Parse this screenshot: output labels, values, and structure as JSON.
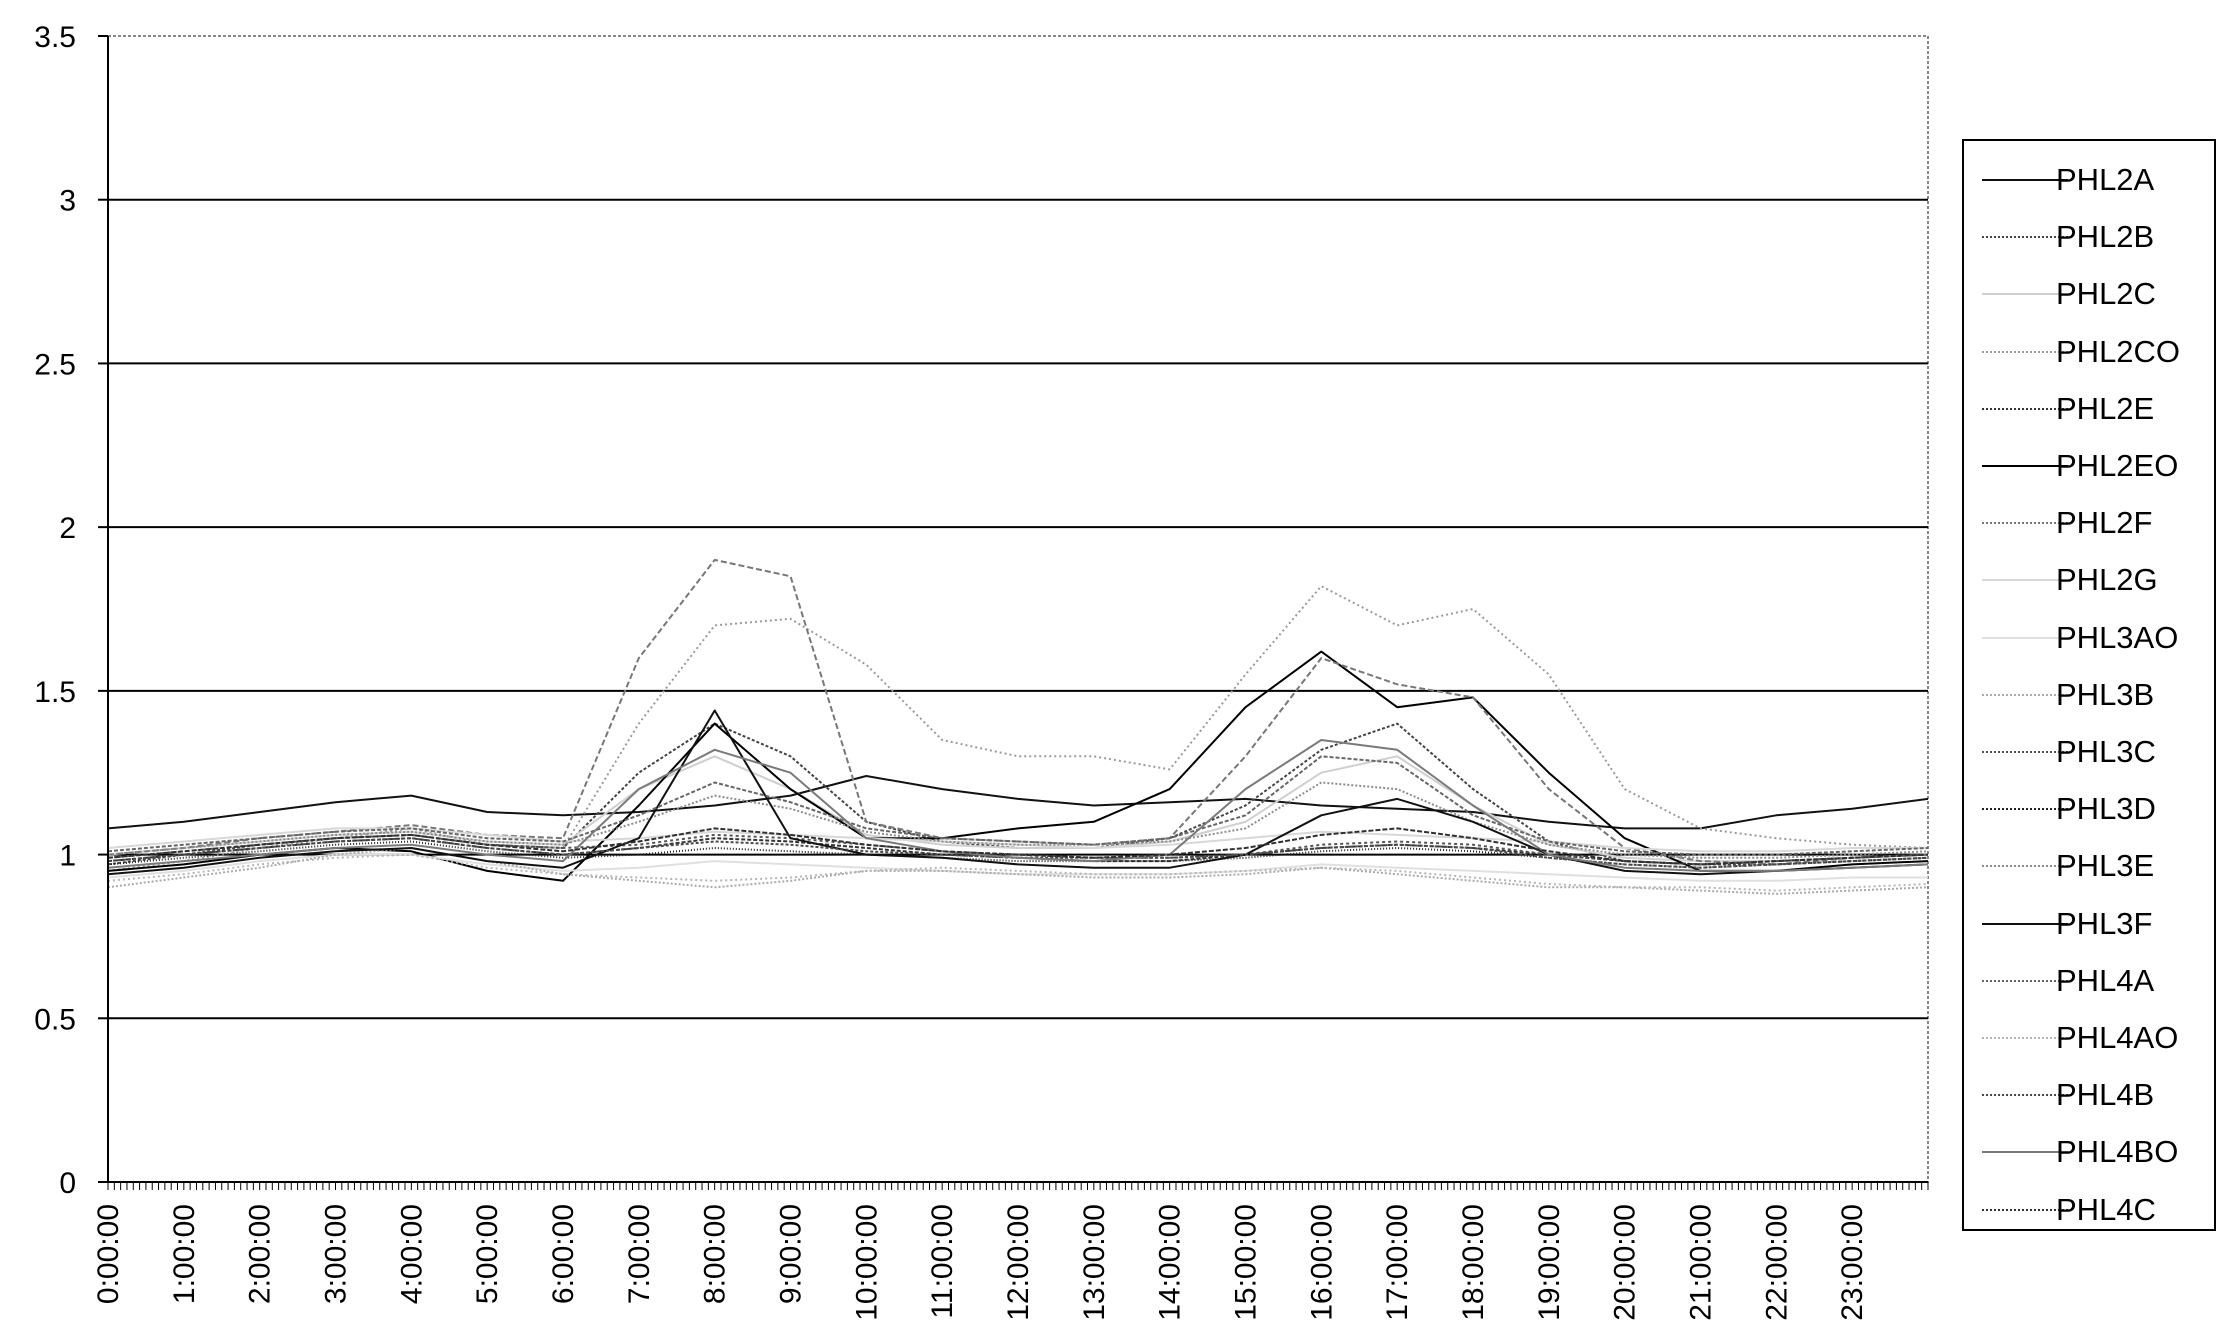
{
  "chart_data": {
    "type": "line",
    "title": "",
    "xlabel": "",
    "ylabel": "",
    "ylim": [
      0,
      3.5
    ],
    "yticks": [
      "0",
      "0.5",
      "1",
      "1.5",
      "2",
      "2.5",
      "3",
      "3.5"
    ],
    "xlim": [
      0,
      24
    ],
    "xticks": [
      "0:00:00",
      "1:00:00",
      "2:00:00",
      "3:00:00",
      "4:00:00",
      "5:00:00",
      "6:00:00",
      "7:00:00",
      "8:00:00",
      "9:00:00",
      "10:00:00",
      "11:00:00",
      "12:00:00",
      "13:00:00",
      "14:00:00",
      "15:00:00",
      "16:00:00",
      "17:00:00",
      "18:00:00",
      "19:00:00",
      "20:00:00",
      "21:00:00",
      "22:00:00",
      "23:00:00"
    ],
    "grid": true,
    "legend_position": "right",
    "series": [
      {
        "name": "PHL2A",
        "color": "#111111",
        "dash": "",
        "x": [
          0,
          1,
          2,
          3,
          4,
          5,
          6,
          7,
          8,
          9,
          10,
          11,
          12,
          13,
          14,
          15,
          16,
          17,
          18,
          19,
          20,
          21,
          22,
          23,
          24
        ],
        "y": [
          1.08,
          1.1,
          1.13,
          1.16,
          1.18,
          1.13,
          1.12,
          1.13,
          1.15,
          1.18,
          1.24,
          1.2,
          1.17,
          1.15,
          1.16,
          1.17,
          1.15,
          1.14,
          1.13,
          1.1,
          1.08,
          1.08,
          1.12,
          1.14,
          1.17
        ]
      },
      {
        "name": "PHL2B",
        "color": "#444444",
        "dash": "3,2",
        "x": [
          0,
          1,
          2,
          3,
          4,
          5,
          6,
          7,
          8,
          9,
          10,
          11,
          12,
          13,
          14,
          15,
          16,
          17,
          18,
          19,
          20,
          21,
          22,
          23,
          24
        ],
        "y": [
          0.97,
          1.0,
          1.03,
          1.05,
          1.06,
          1.03,
          1.02,
          1.25,
          1.4,
          1.3,
          1.1,
          1.04,
          1.02,
          1.02,
          1.05,
          1.15,
          1.32,
          1.4,
          1.2,
          1.04,
          0.98,
          0.97,
          0.97,
          0.98,
          0.99
        ]
      },
      {
        "name": "PHL2C",
        "color": "#cfcfcf",
        "dash": "",
        "x": [
          0,
          1,
          2,
          3,
          4,
          5,
          6,
          7,
          8,
          9,
          10,
          11,
          12,
          13,
          14,
          15,
          16,
          17,
          18,
          19,
          20,
          21,
          22,
          23,
          24
        ],
        "y": [
          1.0,
          1.02,
          1.04,
          1.06,
          1.07,
          1.04,
          1.03,
          1.2,
          1.3,
          1.2,
          1.06,
          1.03,
          1.02,
          1.02,
          1.04,
          1.1,
          1.25,
          1.3,
          1.15,
          1.03,
          0.99,
          0.98,
          0.98,
          0.99,
          1.0
        ]
      },
      {
        "name": "PHL2CO",
        "color": "#9a9a9a",
        "dash": "2,3",
        "x": [
          0,
          1,
          2,
          3,
          4,
          5,
          6,
          7,
          8,
          9,
          10,
          11,
          12,
          13,
          14,
          15,
          16,
          17,
          18,
          19,
          20,
          21,
          22,
          23,
          24
        ],
        "y": [
          0.95,
          0.98,
          1.02,
          1.05,
          1.08,
          1.03,
          1.02,
          1.4,
          1.7,
          1.72,
          1.58,
          1.35,
          1.3,
          1.3,
          1.26,
          1.55,
          1.82,
          1.7,
          1.75,
          1.55,
          1.2,
          1.08,
          1.05,
          1.03,
          1.02
        ]
      },
      {
        "name": "PHL2E",
        "color": "#333333",
        "dash": "4,2",
        "x": [
          0,
          1,
          2,
          3,
          4,
          5,
          6,
          7,
          8,
          9,
          10,
          11,
          12,
          13,
          14,
          15,
          16,
          17,
          18,
          19,
          20,
          21,
          22,
          23,
          24
        ],
        "y": [
          0.98,
          1.0,
          1.02,
          1.04,
          1.05,
          1.02,
          1.0,
          1.02,
          1.05,
          1.04,
          1.02,
          1.0,
          0.99,
          0.98,
          0.98,
          1.0,
          1.02,
          1.03,
          1.02,
          1.0,
          0.98,
          0.97,
          0.98,
          0.99,
          1.0
        ]
      },
      {
        "name": "PHL2EO",
        "color": "#000000",
        "dash": "",
        "x": [
          0,
          1,
          2,
          3,
          4,
          5,
          6,
          7,
          8,
          9,
          10,
          11,
          12,
          13,
          14,
          15,
          16,
          17,
          18,
          19,
          20,
          21,
          22,
          23,
          24
        ],
        "y": [
          0.95,
          0.97,
          1.0,
          1.02,
          1.01,
          0.95,
          0.92,
          1.15,
          1.4,
          1.2,
          1.05,
          1.05,
          1.08,
          1.1,
          1.2,
          1.45,
          1.62,
          1.45,
          1.48,
          1.25,
          1.05,
          0.95,
          0.95,
          0.97,
          0.98
        ]
      },
      {
        "name": "PHL2F",
        "color": "#777777",
        "dash": "6,3",
        "x": [
          0,
          1,
          2,
          3,
          4,
          5,
          6,
          7,
          8,
          9,
          10,
          11,
          12,
          13,
          14,
          15,
          16,
          17,
          18,
          19,
          20,
          21,
          22,
          23,
          24
        ],
        "y": [
          1.0,
          1.02,
          1.05,
          1.07,
          1.09,
          1.06,
          1.05,
          1.6,
          1.9,
          1.85,
          1.1,
          1.05,
          1.04,
          1.03,
          1.05,
          1.3,
          1.6,
          1.52,
          1.48,
          1.2,
          1.02,
          0.98,
          0.97,
          0.99,
          1.0
        ]
      },
      {
        "name": "PHL2G",
        "color": "#d8d8d8",
        "dash": "",
        "x": [
          0,
          1,
          2,
          3,
          4,
          5,
          6,
          7,
          8,
          9,
          10,
          11,
          12,
          13,
          14,
          15,
          16,
          17,
          18,
          19,
          20,
          21,
          22,
          23,
          24
        ],
        "y": [
          1.02,
          1.04,
          1.06,
          1.08,
          1.08,
          1.06,
          1.04,
          1.05,
          1.07,
          1.06,
          1.05,
          1.04,
          1.03,
          1.02,
          1.03,
          1.05,
          1.07,
          1.06,
          1.05,
          1.04,
          1.02,
          1.01,
          1.01,
          1.02,
          1.02
        ]
      },
      {
        "name": "PHL3AO",
        "color": "#e0e0e0",
        "dash": "",
        "x": [
          0,
          1,
          2,
          3,
          4,
          5,
          6,
          7,
          8,
          9,
          10,
          11,
          12,
          13,
          14,
          15,
          16,
          17,
          18,
          19,
          20,
          21,
          22,
          23,
          24
        ],
        "y": [
          0.93,
          0.95,
          0.98,
          1.0,
          1.0,
          0.97,
          0.95,
          0.96,
          0.98,
          0.97,
          0.96,
          0.95,
          0.94,
          0.94,
          0.94,
          0.95,
          0.97,
          0.96,
          0.95,
          0.94,
          0.93,
          0.92,
          0.92,
          0.93,
          0.93
        ]
      },
      {
        "name": "PHL3B",
        "color": "#aaaaaa",
        "dash": "2,2",
        "x": [
          0,
          1,
          2,
          3,
          4,
          5,
          6,
          7,
          8,
          9,
          10,
          11,
          12,
          13,
          14,
          15,
          16,
          17,
          18,
          19,
          20,
          21,
          22,
          23,
          24
        ],
        "y": [
          0.9,
          0.93,
          0.96,
          1.0,
          1.02,
          0.98,
          0.94,
          0.92,
          0.9,
          0.92,
          0.95,
          0.95,
          0.94,
          0.93,
          0.93,
          0.94,
          0.96,
          0.94,
          0.92,
          0.9,
          0.9,
          0.89,
          0.88,
          0.89,
          0.9
        ]
      },
      {
        "name": "PHL3C",
        "color": "#555555",
        "dash": "3,3",
        "x": [
          0,
          1,
          2,
          3,
          4,
          5,
          6,
          7,
          8,
          9,
          10,
          11,
          12,
          13,
          14,
          15,
          16,
          17,
          18,
          19,
          20,
          21,
          22,
          23,
          24
        ],
        "y": [
          0.99,
          1.01,
          1.03,
          1.05,
          1.06,
          1.03,
          1.02,
          1.03,
          1.06,
          1.05,
          1.03,
          1.01,
          1.0,
          0.99,
          0.99,
          1.0,
          1.03,
          1.04,
          1.03,
          1.0,
          0.98,
          0.97,
          0.98,
          0.99,
          1.0
        ]
      },
      {
        "name": "PHL3D",
        "color": "#222222",
        "dash": "1,2",
        "x": [
          0,
          1,
          2,
          3,
          4,
          5,
          6,
          7,
          8,
          9,
          10,
          11,
          12,
          13,
          14,
          15,
          16,
          17,
          18,
          19,
          20,
          21,
          22,
          23,
          24
        ],
        "y": [
          0.97,
          0.99,
          1.01,
          1.03,
          1.04,
          1.01,
          0.99,
          1.0,
          1.02,
          1.01,
          1.0,
          0.99,
          0.98,
          0.98,
          0.98,
          0.99,
          1.01,
          1.02,
          1.01,
          0.99,
          0.97,
          0.96,
          0.97,
          0.98,
          0.99
        ]
      },
      {
        "name": "PHL3E",
        "color": "#8c8c8c",
        "dash": "2,2",
        "x": [
          0,
          1,
          2,
          3,
          4,
          5,
          6,
          7,
          8,
          9,
          10,
          11,
          12,
          13,
          14,
          15,
          16,
          17,
          18,
          19,
          20,
          21,
          22,
          23,
          24
        ],
        "y": [
          1.0,
          1.02,
          1.04,
          1.06,
          1.07,
          1.04,
          1.03,
          1.1,
          1.18,
          1.14,
          1.07,
          1.04,
          1.03,
          1.03,
          1.04,
          1.08,
          1.22,
          1.2,
          1.1,
          1.03,
          1.0,
          0.99,
          0.99,
          1.0,
          1.01
        ]
      },
      {
        "name": "PHL3F",
        "color": "#111111",
        "dash": "",
        "x": [
          0,
          1,
          2,
          3,
          4,
          5,
          6,
          7,
          8,
          9,
          10,
          11,
          12,
          13,
          14,
          15,
          16,
          17,
          18,
          19,
          20,
          21,
          22,
          23,
          24
        ],
        "y": [
          0.94,
          0.96,
          0.99,
          1.01,
          1.02,
          0.98,
          0.96,
          1.05,
          1.44,
          1.05,
          1.0,
          0.99,
          0.97,
          0.96,
          0.96,
          1.0,
          1.12,
          1.17,
          1.1,
          1.0,
          0.95,
          0.94,
          0.95,
          0.96,
          0.97
        ]
      },
      {
        "name": "PHL4A",
        "color": "#666666",
        "dash": "4,2",
        "x": [
          0,
          1,
          2,
          3,
          4,
          5,
          6,
          7,
          8,
          9,
          10,
          11,
          12,
          13,
          14,
          15,
          16,
          17,
          18,
          19,
          20,
          21,
          22,
          23,
          24
        ],
        "y": [
          1.01,
          1.03,
          1.05,
          1.07,
          1.08,
          1.05,
          1.04,
          1.12,
          1.22,
          1.16,
          1.08,
          1.05,
          1.04,
          1.03,
          1.05,
          1.12,
          1.3,
          1.28,
          1.12,
          1.04,
          1.01,
          1.0,
          1.0,
          1.01,
          1.02
        ]
      },
      {
        "name": "PHL4AO",
        "color": "#b5b5b5",
        "dash": "2,3",
        "x": [
          0,
          1,
          2,
          3,
          4,
          5,
          6,
          7,
          8,
          9,
          10,
          11,
          12,
          13,
          14,
          15,
          16,
          17,
          18,
          19,
          20,
          21,
          22,
          23,
          24
        ],
        "y": [
          0.92,
          0.94,
          0.97,
          0.99,
          1.0,
          0.96,
          0.94,
          0.93,
          0.92,
          0.93,
          0.95,
          0.96,
          0.95,
          0.94,
          0.94,
          0.95,
          0.96,
          0.95,
          0.93,
          0.91,
          0.9,
          0.9,
          0.89,
          0.9,
          0.91
        ]
      },
      {
        "name": "PHL4B",
        "color": "#4a4a4a",
        "dash": "3,2",
        "x": [
          0,
          1,
          2,
          3,
          4,
          5,
          6,
          7,
          8,
          9,
          10,
          11,
          12,
          13,
          14,
          15,
          16,
          17,
          18,
          19,
          20,
          21,
          22,
          23,
          24
        ],
        "y": [
          0.98,
          1.0,
          1.02,
          1.04,
          1.05,
          1.02,
          1.0,
          1.02,
          1.04,
          1.03,
          1.01,
          1.0,
          0.99,
          0.99,
          0.99,
          1.0,
          1.02,
          1.03,
          1.02,
          0.99,
          0.97,
          0.96,
          0.97,
          0.98,
          0.99
        ]
      },
      {
        "name": "PHL4BO",
        "color": "#7a7a7a",
        "dash": "",
        "x": [
          0,
          1,
          2,
          3,
          4,
          5,
          6,
          7,
          8,
          9,
          10,
          11,
          12,
          13,
          14,
          15,
          16,
          17,
          18,
          19,
          20,
          21,
          22,
          23,
          24
        ],
        "y": [
          0.96,
          0.98,
          1.0,
          1.02,
          1.03,
          1.0,
          0.98,
          1.2,
          1.32,
          1.25,
          1.05,
          1.01,
          0.99,
          0.98,
          1.0,
          1.2,
          1.35,
          1.32,
          1.15,
          1.0,
          0.96,
          0.95,
          0.95,
          0.96,
          0.97
        ]
      },
      {
        "name": "PHL4C",
        "color": "#303030",
        "dash": "5,2",
        "x": [
          0,
          1,
          2,
          3,
          4,
          5,
          6,
          7,
          8,
          9,
          10,
          11,
          12,
          13,
          14,
          15,
          16,
          17,
          18,
          19,
          20,
          21,
          22,
          23,
          24
        ],
        "y": [
          0.99,
          1.01,
          1.03,
          1.05,
          1.06,
          1.03,
          1.01,
          1.04,
          1.08,
          1.06,
          1.03,
          1.01,
          1.0,
          0.99,
          1.0,
          1.02,
          1.06,
          1.08,
          1.05,
          1.01,
          0.98,
          0.97,
          0.98,
          0.99,
          1.0
        ]
      }
    ]
  }
}
